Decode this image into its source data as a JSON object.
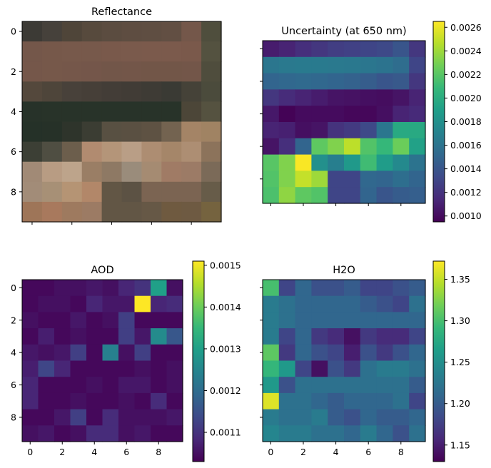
{
  "chart_data": [
    {
      "type": "heatmap",
      "id": "reflectance",
      "title": "Reflectance",
      "colorbar": false,
      "xticks": [
        0,
        2,
        4,
        6,
        8
      ],
      "yticks": [
        0,
        2,
        4,
        6,
        8
      ],
      "xtick_labels_shown": false,
      "ytick_labels_shown": true,
      "xlim": [
        -0.5,
        9.5
      ],
      "ylim": [
        -0.5,
        9.5
      ],
      "rgb": [
        [
          "#3c3a35",
          "#46413b",
          "#4f4539",
          "#574a3d",
          "#5b4c40",
          "#5e4d41",
          "#5f4e42",
          "#624f43",
          "#74574a",
          "#4f4e3d"
        ],
        [
          "#74574a",
          "#76584a",
          "#77594b",
          "#77594b",
          "#79594b",
          "#7a5a4c",
          "#7b5a4c",
          "#7b5a4c",
          "#7a594b",
          "#545240"
        ],
        [
          "#75574a",
          "#76584a",
          "#75574a",
          "#74564a",
          "#725649",
          "#735649",
          "#725648",
          "#725648",
          "#735649",
          "#4f4d3d"
        ],
        [
          "#54483c",
          "#4e453a",
          "#48413a",
          "#463f38",
          "#433d37",
          "#413c36",
          "#3e3b35",
          "#3a3a34",
          "#454238",
          "#4b4b3c"
        ],
        [
          "#273229",
          "#283329",
          "#283329",
          "#283329",
          "#283329",
          "#283329",
          "#283329",
          "#283329",
          "#4c4638",
          "#555240"
        ],
        [
          "#253128",
          "#263128",
          "#2e342b",
          "#3b3d33",
          "#585042",
          "#5a5042",
          "#5e5243",
          "#736350",
          "#a48466",
          "#a08363"
        ],
        [
          "#3c3f35",
          "#4f4e42",
          "#6c5e4c",
          "#b18b70",
          "#b49579",
          "#b99e86",
          "#ad8d72",
          "#a58669",
          "#ad8e73",
          "#8c735b"
        ],
        [
          "#a18a76",
          "#b89c83",
          "#bda48b",
          "#9a7e65",
          "#8e7964",
          "#9a8c7b",
          "#a58b72",
          "#a07b65",
          "#9c7b66",
          "#7b6a58"
        ],
        [
          "#a28c78",
          "#a79076",
          "#b59474",
          "#b28769",
          "#625645",
          "#5c5244",
          "#7b6452",
          "#7b6452",
          "#7b6452",
          "#675c49"
        ],
        [
          "#9e7558",
          "#a8795d",
          "#9e7a5f",
          "#9c7b64",
          "#625645",
          "#625645",
          "#665846",
          "#6f5a40",
          "#6e5a42",
          "#75633f"
        ]
      ]
    },
    {
      "type": "heatmap",
      "id": "uncertainty",
      "title": "Uncertainty (at 650 nm)",
      "colorbar": true,
      "colormap": "viridis",
      "vmin": 0.00095,
      "vmax": 0.00265,
      "colorbar_ticks": [
        0.001,
        0.0012,
        0.0014,
        0.0016,
        0.0018,
        0.002,
        0.0022,
        0.0024,
        0.0026
      ],
      "colorbar_tick_labels": [
        "0.0010",
        "0.0012",
        "0.0014",
        "0.0016",
        "0.0018",
        "0.0020",
        "0.0022",
        "0.0024",
        "0.0026"
      ],
      "xticks": [
        0,
        2,
        4,
        6,
        8
      ],
      "yticks": [
        0,
        2,
        4,
        6,
        8
      ],
      "xtick_labels_shown": false,
      "ytick_labels_shown": false,
      "xlim": [
        -0.5,
        9.5
      ],
      "ylim": [
        -0.5,
        9.5
      ],
      "values": [
        [
          0.00108,
          0.00112,
          0.00118,
          0.00122,
          0.00126,
          0.00128,
          0.0013,
          0.00132,
          0.0014,
          0.00122
        ],
        [
          0.00162,
          0.00164,
          0.00165,
          0.00165,
          0.00164,
          0.00163,
          0.00162,
          0.0016,
          0.00155,
          0.0013
        ],
        [
          0.0015,
          0.00152,
          0.00153,
          0.00152,
          0.0015,
          0.00148,
          0.00145,
          0.0014,
          0.00142,
          0.00122
        ],
        [
          0.00122,
          0.00116,
          0.00112,
          0.00108,
          0.00104,
          0.00103,
          0.00102,
          0.00101,
          0.00104,
          0.00112
        ],
        [
          0.00106,
          0.00096,
          0.001,
          0.001,
          0.001,
          0.00098,
          0.00098,
          0.00102,
          0.00112,
          0.00115
        ],
        [
          0.00112,
          0.0011,
          0.00102,
          0.00104,
          0.0012,
          0.00124,
          0.00132,
          0.00162,
          0.00198,
          0.00198
        ],
        [
          0.00104,
          0.00118,
          0.0015,
          0.00222,
          0.00232,
          0.00248,
          0.00218,
          0.00208,
          0.00226,
          0.00192
        ],
        [
          0.0022,
          0.00232,
          0.00264,
          0.0018,
          0.00168,
          0.00186,
          0.00212,
          0.00188,
          0.00175,
          0.0016
        ],
        [
          0.00218,
          0.00232,
          0.0025,
          0.0024,
          0.0013,
          0.0013,
          0.00152,
          0.0015,
          0.00156,
          0.0015
        ],
        [
          0.00216,
          0.00236,
          0.00222,
          0.00218,
          0.0013,
          0.0013,
          0.0015,
          0.0014,
          0.00144,
          0.00146
        ]
      ]
    },
    {
      "type": "heatmap",
      "id": "aod",
      "title": "AOD",
      "colorbar": true,
      "colormap": "viridis",
      "vmin": 0.00103,
      "vmax": 0.00151,
      "colorbar_ticks": [
        0.0011,
        0.0012,
        0.0013,
        0.0014,
        0.0015
      ],
      "colorbar_tick_labels": [
        "0.0011",
        "0.0012",
        "0.0013",
        "0.0014",
        "0.0015"
      ],
      "xticks": [
        0,
        2,
        4,
        6,
        8
      ],
      "yticks": [
        0,
        2,
        4,
        6,
        8
      ],
      "xtick_labels_shown": true,
      "ytick_labels_shown": true,
      "xlim": [
        -0.5,
        9.5
      ],
      "ylim": [
        -0.5,
        9.5
      ],
      "values": [
        [
          0.00104,
          0.00104,
          0.00105,
          0.00105,
          0.00106,
          0.00105,
          0.00108,
          0.0011,
          0.0013,
          0.00105
        ],
        [
          0.00104,
          0.00105,
          0.00105,
          0.00104,
          0.00108,
          0.00106,
          0.00106,
          0.00151,
          0.00108,
          0.00109
        ],
        [
          0.00105,
          0.00104,
          0.00104,
          0.00106,
          0.00104,
          0.00105,
          0.00112,
          0.00104,
          0.00104,
          0.00104
        ],
        [
          0.00104,
          0.00107,
          0.00104,
          0.00105,
          0.00104,
          0.00104,
          0.00112,
          0.00106,
          0.00126,
          0.00116
        ],
        [
          0.00106,
          0.00105,
          0.00106,
          0.00112,
          0.00104,
          0.00124,
          0.00105,
          0.00112,
          0.00104,
          0.00104
        ],
        [
          0.00107,
          0.00113,
          0.00108,
          0.00104,
          0.00104,
          0.00104,
          0.00104,
          0.00105,
          0.00104,
          0.00105
        ],
        [
          0.00108,
          0.00104,
          0.00104,
          0.00104,
          0.00105,
          0.00104,
          0.00106,
          0.00106,
          0.00104,
          0.00105
        ],
        [
          0.00108,
          0.00104,
          0.00104,
          0.00105,
          0.00104,
          0.00104,
          0.00105,
          0.00104,
          0.00109,
          0.00104
        ],
        [
          0.00104,
          0.00104,
          0.00106,
          0.00112,
          0.00104,
          0.00109,
          0.00105,
          0.00105,
          0.00105,
          0.00106
        ],
        [
          0.00105,
          0.00106,
          0.00104,
          0.00105,
          0.00109,
          0.00109,
          0.00105,
          0.00106,
          0.00104,
          0.00104
        ]
      ]
    },
    {
      "type": "heatmap",
      "id": "h2o",
      "title": "H2O",
      "colorbar": true,
      "colormap": "viridis",
      "vmin": 1.13,
      "vmax": 1.372,
      "colorbar_ticks": [
        1.15,
        1.2,
        1.25,
        1.3,
        1.35
      ],
      "colorbar_tick_labels": [
        "1.15",
        "1.20",
        "1.25",
        "1.30",
        "1.35"
      ],
      "xticks": [
        0,
        2,
        4,
        6,
        8
      ],
      "yticks": [
        0,
        2,
        4,
        6,
        8
      ],
      "xtick_labels_shown": true,
      "ytick_labels_shown": false,
      "xlim": [
        -0.5,
        9.5
      ],
      "ylim": [
        -0.5,
        9.5
      ],
      "values": [
        [
          1.3,
          1.18,
          1.21,
          1.19,
          1.19,
          1.2,
          1.18,
          1.18,
          1.19,
          1.2
        ],
        [
          1.23,
          1.22,
          1.21,
          1.21,
          1.21,
          1.21,
          1.2,
          1.19,
          1.18,
          1.22
        ],
        [
          1.23,
          1.22,
          1.21,
          1.21,
          1.21,
          1.21,
          1.21,
          1.21,
          1.21,
          1.21
        ],
        [
          1.23,
          1.18,
          1.21,
          1.17,
          1.16,
          1.14,
          1.17,
          1.16,
          1.16,
          1.18
        ],
        [
          1.31,
          1.17,
          1.21,
          1.19,
          1.18,
          1.15,
          1.19,
          1.17,
          1.19,
          1.21
        ],
        [
          1.29,
          1.26,
          1.18,
          1.14,
          1.19,
          1.17,
          1.22,
          1.23,
          1.23,
          1.22
        ],
        [
          1.26,
          1.19,
          1.22,
          1.22,
          1.22,
          1.22,
          1.22,
          1.22,
          1.22,
          1.2
        ],
        [
          1.36,
          1.22,
          1.22,
          1.21,
          1.2,
          1.21,
          1.21,
          1.21,
          1.22,
          1.18
        ],
        [
          1.23,
          1.22,
          1.22,
          1.23,
          1.2,
          1.19,
          1.21,
          1.2,
          1.2,
          1.21
        ],
        [
          1.24,
          1.23,
          1.23,
          1.22,
          1.22,
          1.21,
          1.23,
          1.21,
          1.19,
          1.22
        ]
      ]
    }
  ]
}
